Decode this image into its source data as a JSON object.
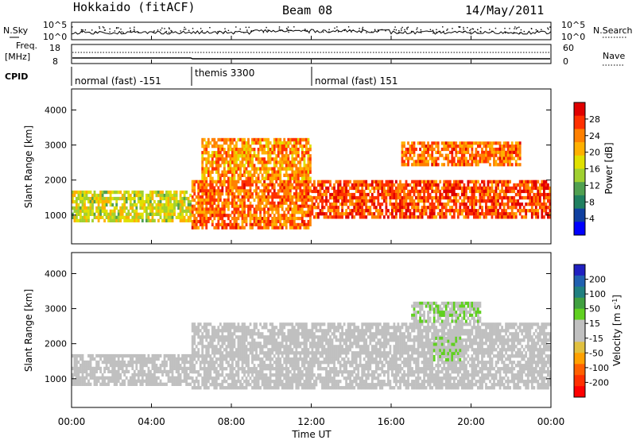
{
  "header": {
    "station": "Hokkaido (fitACF)",
    "beam": "Beam 08",
    "date": "14/May/2011"
  },
  "top_panels": {
    "nsky_label": "N.Sky",
    "nsearch_label": "N.Search",
    "nsky_ticks": [
      "10^5",
      "10^0"
    ],
    "nsearch_ticks": [
      "10^5",
      "10^0"
    ],
    "freq_label": "Freq.",
    "freq_unit": "[MHz]",
    "freq_ticks": [
      "18",
      "8"
    ],
    "nave_label": "Nave",
    "nave_ticks": [
      "60",
      "0"
    ],
    "cpid_label": "CPID",
    "modes": [
      {
        "label": "normal (fast) -151",
        "start_hour": 0,
        "end_hour": 6
      },
      {
        "label": "themis 3300",
        "start_hour": 6,
        "end_hour": 12
      },
      {
        "label": "normal (fast) 151",
        "start_hour": 12,
        "end_hour": 24
      }
    ]
  },
  "axes": {
    "ylabel": "Slant Range [km]",
    "xlabel": "Time UT",
    "x_ticks": [
      "00:00",
      "04:00",
      "08:00",
      "12:00",
      "16:00",
      "20:00",
      "00:00"
    ],
    "y_ticks": [
      "1000",
      "2000",
      "3000",
      "4000"
    ]
  },
  "power_scale": {
    "label": "Power [dB]",
    "ticks": [
      "28",
      "24",
      "20",
      "16",
      "12",
      "8",
      "4"
    ],
    "colors": [
      "#e00000",
      "#ff3000",
      "#ff8000",
      "#ffb000",
      "#e0e000",
      "#a0d030",
      "#50a050",
      "#208060",
      "#1040a0",
      "#0000ff"
    ]
  },
  "velocity_scale": {
    "label": "Velocity [m s",
    "label_sup": "-1",
    "label_end": "]",
    "ticks": [
      "200",
      "100",
      "50",
      "15",
      "-15",
      "-50",
      "-100",
      "-200"
    ],
    "colors": [
      "#2020c0",
      "#2060b0",
      "#208080",
      "#40a040",
      "#60d020",
      "#c0c0c0",
      "#c0c0c0",
      "#e0c040",
      "#ffa000",
      "#ff6000",
      "#ff3000",
      "#ff0000"
    ]
  },
  "chart_data": [
    {
      "type": "heatmap",
      "title": "Power",
      "xlabel": "Time UT",
      "ylabel": "Slant Range [km]",
      "xlim": [
        0,
        24
      ],
      "ylim": [
        180,
        4600
      ],
      "colorbar_label": "Power [dB]",
      "colorbar_range": [
        0,
        30
      ],
      "bands": [
        {
          "t0": 0.0,
          "t1": 6.0,
          "r0": 800,
          "r1": 1700,
          "mean_db": 16
        },
        {
          "t0": 6.0,
          "t1": 12.0,
          "r0": 600,
          "r1": 2000,
          "mean_db": 24
        },
        {
          "t0": 6.5,
          "t1": 12.0,
          "r0": 2000,
          "r1": 3200,
          "mean_db": 22
        },
        {
          "t0": 12.0,
          "t1": 24.0,
          "r0": 900,
          "r1": 2000,
          "mean_db": 26
        },
        {
          "t0": 16.5,
          "t1": 22.5,
          "r0": 2400,
          "r1": 3100,
          "mean_db": 24
        }
      ]
    },
    {
      "type": "heatmap",
      "title": "Velocity",
      "xlabel": "Time UT",
      "ylabel": "Slant Range [km]",
      "xlim": [
        0,
        24
      ],
      "ylim": [
        180,
        4600
      ],
      "colorbar_label": "Velocity [m s-1]",
      "colorbar_range": [
        -200,
        200
      ],
      "bands": [
        {
          "t0": 0.0,
          "t1": 6.0,
          "r0": 800,
          "r1": 1700,
          "mean_vel": 0
        },
        {
          "t0": 6.0,
          "t1": 24.0,
          "r0": 700,
          "r1": 2600,
          "mean_vel": 0
        },
        {
          "t0": 17.0,
          "t1": 20.5,
          "r0": 2600,
          "r1": 3200,
          "mean_vel": 30
        },
        {
          "t0": 18.0,
          "t1": 19.5,
          "r0": 1500,
          "r1": 2200,
          "mean_vel": 30
        }
      ]
    }
  ]
}
